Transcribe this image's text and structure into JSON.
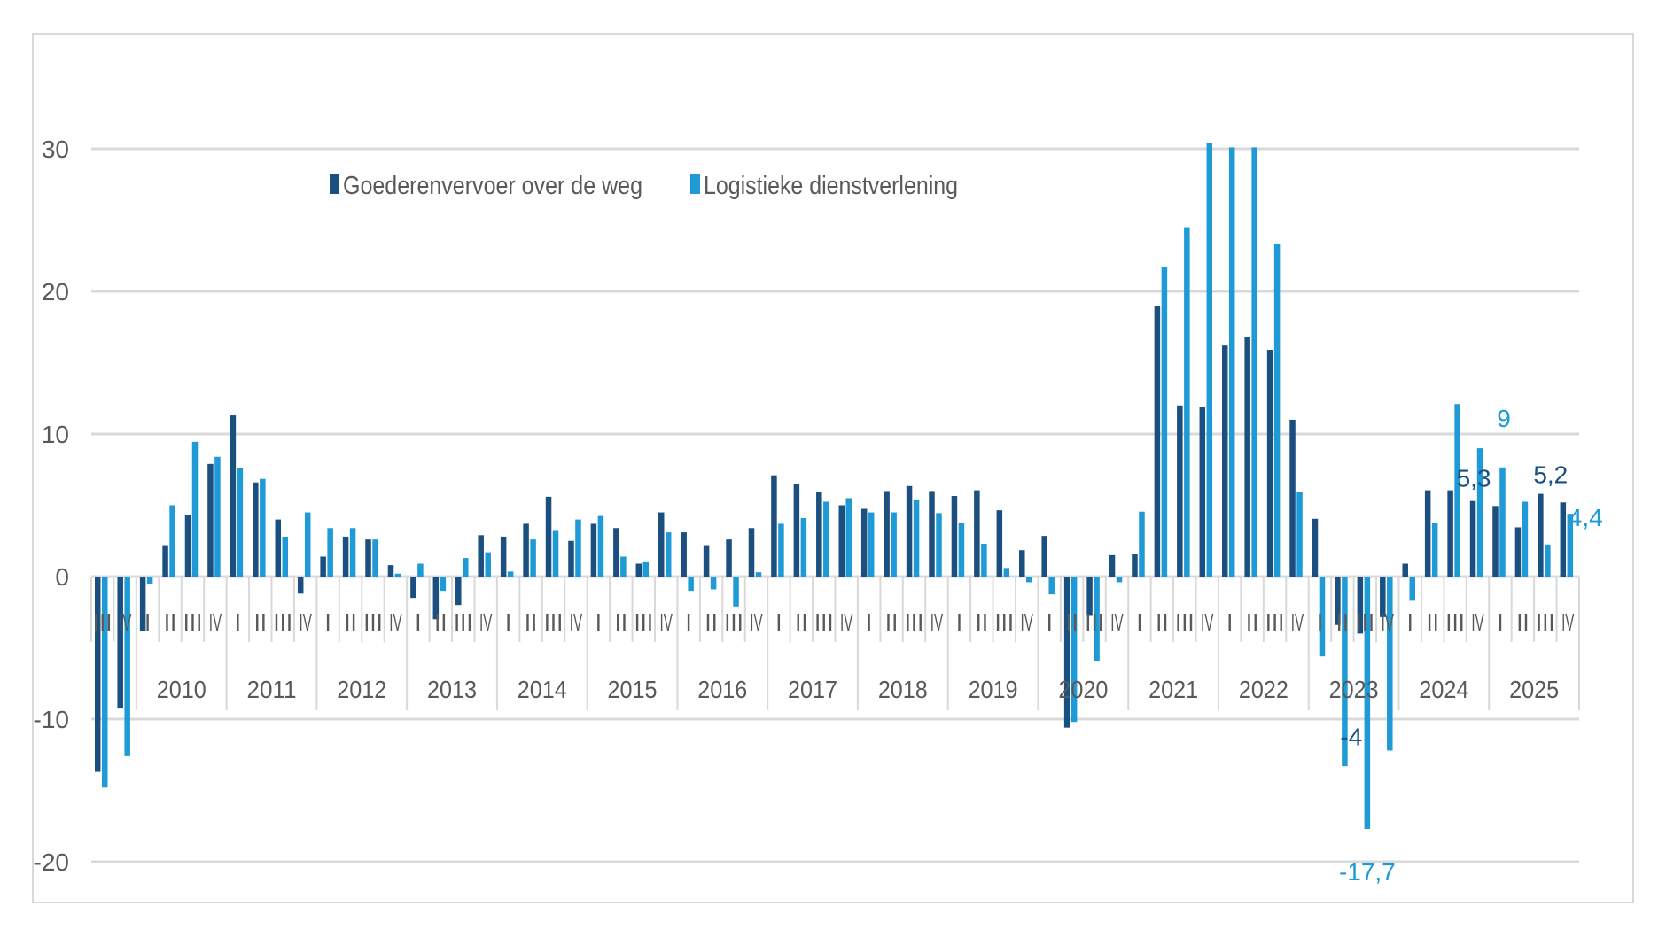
{
  "chart_data": {
    "type": "bar",
    "title": "",
    "xlabel": "",
    "ylabel": "",
    "ylim": [
      -20,
      30
    ],
    "yticks": [
      30,
      20,
      10,
      0,
      -10,
      -20
    ],
    "ytick_labels": [
      "30",
      "20",
      "10",
      "0",
      "-10",
      "-20"
    ],
    "grid": true,
    "legend_position": "top-left",
    "colors": {
      "Goederenvervoer over de weg": "#1a4f7f",
      "Logistieke dienstverlening": "#1e9ad6",
      "grid": "#d9d9d9",
      "text": "#595959"
    },
    "years": [
      {
        "label": "",
        "quarters": [
          "III",
          "IV"
        ]
      },
      {
        "label": "2010",
        "quarters": [
          "I",
          "II",
          "III",
          "IV"
        ]
      },
      {
        "label": "2011",
        "quarters": [
          "I",
          "II",
          "III",
          "IV"
        ]
      },
      {
        "label": "2012",
        "quarters": [
          "I",
          "II",
          "III",
          "IV"
        ]
      },
      {
        "label": "2013",
        "quarters": [
          "I",
          "II",
          "III",
          "IV"
        ]
      },
      {
        "label": "2014",
        "quarters": [
          "I",
          "II",
          "III",
          "IV"
        ]
      },
      {
        "label": "2015",
        "quarters": [
          "I",
          "II",
          "III",
          "IV"
        ]
      },
      {
        "label": "2016",
        "quarters": [
          "I",
          "II",
          "III",
          "IV"
        ]
      },
      {
        "label": "2017",
        "quarters": [
          "I",
          "II",
          "III",
          "IV"
        ]
      },
      {
        "label": "2018",
        "quarters": [
          "I",
          "II",
          "III",
          "IV"
        ]
      },
      {
        "label": "2019",
        "quarters": [
          "I",
          "II",
          "III",
          "IV"
        ]
      },
      {
        "label": "2020",
        "quarters": [
          "I",
          "II",
          "III",
          "IV"
        ]
      },
      {
        "label": "2021",
        "quarters": [
          "I",
          "II",
          "III",
          "IV"
        ]
      },
      {
        "label": "2022",
        "quarters": [
          "I",
          "II",
          "III",
          "IV"
        ]
      },
      {
        "label": "2023",
        "quarters": [
          "I",
          "II",
          "III",
          "IV"
        ]
      },
      {
        "label": "2024",
        "quarters": [
          "I",
          "II",
          "III",
          "IV"
        ]
      },
      {
        "label": "2025",
        "quarters": [
          "I",
          "II",
          "III",
          "IV"
        ]
      }
    ],
    "series": [
      {
        "name": "Goederenvervoer over de weg",
        "values": [
          -13.7,
          -9.2,
          -3.8,
          2.2,
          4.35,
          7.9,
          11.3,
          6.6,
          4.0,
          -1.2,
          1.4,
          2.8,
          2.6,
          0.8,
          -1.5,
          -3.0,
          -2.0,
          2.9,
          2.8,
          3.7,
          5.6,
          2.5,
          3.7,
          3.4,
          0.9,
          4.5,
          3.1,
          2.2,
          2.6,
          3.4,
          7.1,
          6.5,
          5.9,
          5.0,
          4.75,
          6.0,
          6.35,
          6.0,
          5.65,
          6.05,
          4.65,
          1.85,
          2.85,
          -10.6,
          -2.7,
          1.5,
          1.6,
          19.0,
          12.0,
          11.9,
          16.2,
          16.8,
          15.9,
          11.0,
          4.05,
          -3.4,
          -4.0,
          -2.85,
          0.9,
          6.05,
          6.05,
          5.3,
          4.95,
          3.45,
          5.8,
          5.2
        ]
      },
      {
        "name": "Logistieke dienstverlening",
        "values": [
          -14.8,
          -12.6,
          -0.5,
          5.0,
          9.45,
          8.4,
          7.6,
          6.85,
          2.8,
          4.5,
          3.4,
          3.4,
          2.6,
          0.2,
          0.9,
          -1.0,
          1.3,
          1.7,
          0.35,
          2.6,
          3.2,
          4.0,
          4.25,
          1.4,
          1.0,
          3.1,
          -1.0,
          -0.9,
          -2.1,
          0.3,
          3.7,
          4.1,
          5.25,
          5.5,
          4.5,
          4.5,
          5.35,
          4.45,
          3.75,
          2.3,
          0.6,
          -0.4,
          -1.25,
          -10.2,
          -5.9,
          -0.4,
          4.55,
          21.7,
          24.5,
          30.4,
          30.1,
          30.1,
          23.3,
          5.9,
          -5.6,
          -13.3,
          -17.7,
          -12.2,
          -1.7,
          3.75,
          12.1,
          9.0,
          7.65,
          5.25,
          2.25,
          4.4
        ]
      }
    ],
    "data_labels": [
      {
        "series": 0,
        "index": 56,
        "text": "-4"
      },
      {
        "series": 1,
        "index": 56,
        "text": "-17,7"
      },
      {
        "series": 0,
        "index": 61,
        "text": "5,3"
      },
      {
        "series": 1,
        "index": 61,
        "text": "9"
      },
      {
        "series": 0,
        "index": 65,
        "text": "5,2"
      },
      {
        "series": 1,
        "index": 65,
        "text": "4,4"
      }
    ]
  }
}
